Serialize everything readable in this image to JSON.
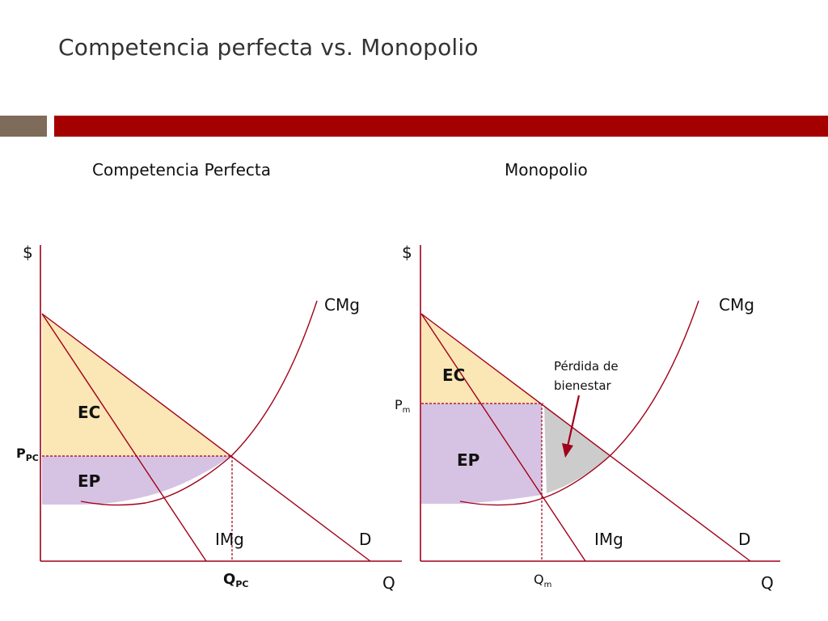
{
  "slide": {
    "title": "Competencia perfecta vs. Monopolio",
    "accent_color": "#a50000",
    "secondary_color": "#7e6b5a"
  },
  "panels": {
    "left": {
      "title": "Competencia Perfecta",
      "y_axis": "$",
      "x_axis": "Q",
      "curve_cmg": "CMg",
      "curve_img": "IMg",
      "curve_d": "D",
      "area_ec": "EC",
      "area_ep": "EP",
      "price_main": "P",
      "price_sub": "PC",
      "qty_main": "Q",
      "qty_sub": "PC"
    },
    "right": {
      "title": "Monopolio",
      "y_axis": "$",
      "x_axis": "Q",
      "curve_cmg": "CMg",
      "curve_img": "IMg",
      "curve_d": "D",
      "area_ec": "EC",
      "area_ep": "EP",
      "deadweight_line1": "Pérdida de",
      "deadweight_line2": "bienestar",
      "price_main": "P",
      "price_sub": "m",
      "qty_main": "Q",
      "qty_sub": "m"
    }
  },
  "colors": {
    "consumer_surplus": "#fbe6b6",
    "producer_surplus": "#d6c3e3",
    "deadweight_loss": "#cccccc",
    "curves": "#a00018"
  }
}
